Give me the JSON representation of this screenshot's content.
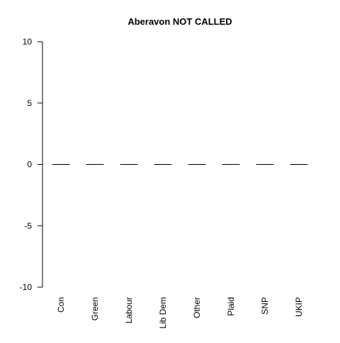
{
  "chart_data": {
    "type": "bar",
    "title": "Aberavon NOT CALLED",
    "xlabel": "",
    "ylabel": "",
    "categories": [
      "Con",
      "Green",
      "Labour",
      "Lib Dem",
      "Other",
      "Plaid",
      "SNP",
      "UKIP"
    ],
    "values": [
      0,
      0,
      0,
      0,
      0,
      0,
      0,
      0
    ],
    "ylim": [
      -10,
      10
    ],
    "yticks": [
      -10,
      -5,
      0,
      5,
      10
    ],
    "ytick_labels": [
      "-10",
      "-5",
      "0",
      "5",
      "10"
    ],
    "grid": false,
    "legend": "none",
    "bar_color": "#000000"
  }
}
